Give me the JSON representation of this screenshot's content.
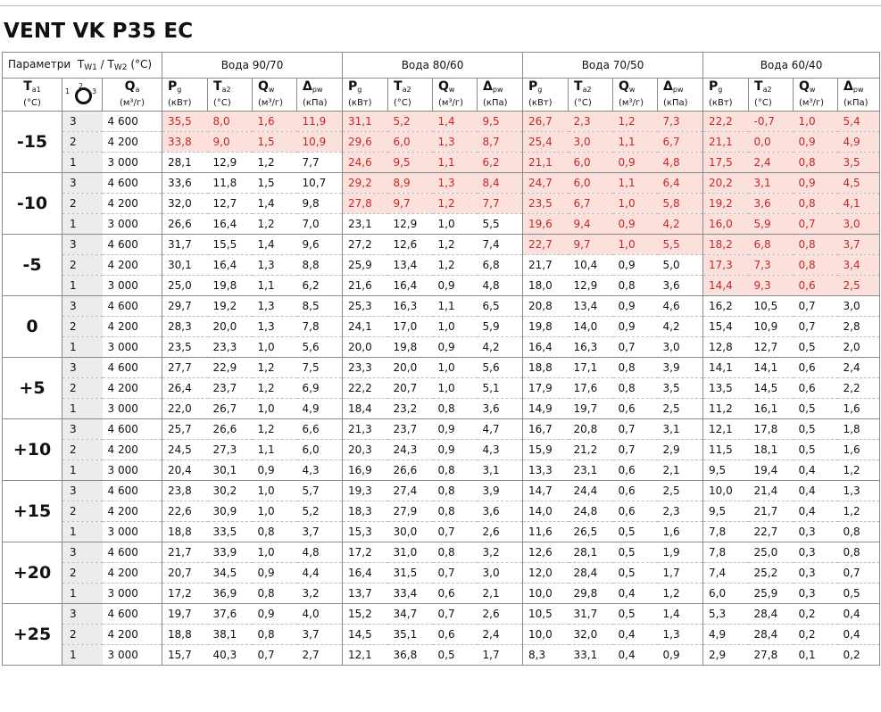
{
  "title": "VENT VK P35 EC",
  "header": {
    "params_label": "Параметри",
    "tw1": "T",
    "tw1_sub": "W1",
    "slash": "/",
    "tw2": "T",
    "tw2_sub": "W2",
    "params_unit": "(°C)",
    "groups": [
      "Вода 90/70",
      "Вода 80/60",
      "Вода 70/50",
      "Вода 60/40"
    ],
    "ta_symbol": "T",
    "ta_sub": "a1",
    "ta_unit": "(°C)",
    "fan_numbers": [
      "1",
      "2",
      "3"
    ],
    "qa_symbol": "Q",
    "qa_sub": "a",
    "qa_unit": "(м³/г)",
    "sub_headers": [
      {
        "symbol": "P",
        "sub": "g",
        "unit": "(кВт)"
      },
      {
        "symbol": "T",
        "sub": "a2",
        "unit": "(°C)"
      },
      {
        "symbol": "Q",
        "sub": "w",
        "unit": "(м³/г)"
      },
      {
        "symbol": "Δ",
        "sub": "pw",
        "unit": "(кПа)"
      }
    ]
  },
  "highlight_color": "#fbe0db",
  "highlight_text_color": "#c62828",
  "rows": [
    {
      "ta": "-15",
      "speed": "3",
      "qa": "4 600",
      "vals": [
        "35,5",
        "8,0",
        "1,6",
        "11,9",
        "31,1",
        "5,2",
        "1,4",
        "9,5",
        "26,7",
        "2,3",
        "1,2",
        "7,3",
        "22,2",
        "-0,7",
        "1,0",
        "5,4"
      ],
      "hl": [
        1,
        1,
        1,
        1,
        1,
        1,
        1,
        1,
        1,
        1,
        1,
        1,
        1,
        1,
        1,
        1
      ]
    },
    {
      "ta": "",
      "speed": "2",
      "qa": "4 200",
      "vals": [
        "33,8",
        "9,0",
        "1,5",
        "10,9",
        "29,6",
        "6,0",
        "1,3",
        "8,7",
        "25,4",
        "3,0",
        "1,1",
        "6,7",
        "21,1",
        "0,0",
        "0,9",
        "4,9"
      ],
      "hl": [
        1,
        1,
        1,
        1,
        1,
        1,
        1,
        1,
        1,
        1,
        1,
        1,
        1,
        1,
        1,
        1
      ]
    },
    {
      "ta": "",
      "speed": "1",
      "qa": "3 000",
      "vals": [
        "28,1",
        "12,9",
        "1,2",
        "7,7",
        "24,6",
        "9,5",
        "1,1",
        "6,2",
        "21,1",
        "6,0",
        "0,9",
        "4,8",
        "17,5",
        "2,4",
        "0,8",
        "3,5"
      ],
      "hl": [
        0,
        0,
        0,
        0,
        1,
        1,
        1,
        1,
        1,
        1,
        1,
        1,
        1,
        1,
        1,
        1
      ]
    },
    {
      "ta": "-10",
      "speed": "3",
      "qa": "4 600",
      "vals": [
        "33,6",
        "11,8",
        "1,5",
        "10,7",
        "29,2",
        "8,9",
        "1,3",
        "8,4",
        "24,7",
        "6,0",
        "1,1",
        "6,4",
        "20,2",
        "3,1",
        "0,9",
        "4,5"
      ],
      "hl": [
        0,
        0,
        0,
        0,
        1,
        1,
        1,
        1,
        1,
        1,
        1,
        1,
        1,
        1,
        1,
        1
      ]
    },
    {
      "ta": "",
      "speed": "2",
      "qa": "4 200",
      "vals": [
        "32,0",
        "12,7",
        "1,4",
        "9,8",
        "27,8",
        "9,7",
        "1,2",
        "7,7",
        "23,5",
        "6,7",
        "1,0",
        "5,8",
        "19,2",
        "3,6",
        "0,8",
        "4,1"
      ],
      "hl": [
        0,
        0,
        0,
        0,
        1,
        1,
        1,
        1,
        1,
        1,
        1,
        1,
        1,
        1,
        1,
        1
      ]
    },
    {
      "ta": "",
      "speed": "1",
      "qa": "3 000",
      "vals": [
        "26,6",
        "16,4",
        "1,2",
        "7,0",
        "23,1",
        "12,9",
        "1,0",
        "5,5",
        "19,6",
        "9,4",
        "0,9",
        "4,2",
        "16,0",
        "5,9",
        "0,7",
        "3,0"
      ],
      "hl": [
        0,
        0,
        0,
        0,
        0,
        0,
        0,
        0,
        1,
        1,
        1,
        1,
        1,
        1,
        1,
        1
      ]
    },
    {
      "ta": "-5",
      "speed": "3",
      "qa": "4 600",
      "vals": [
        "31,7",
        "15,5",
        "1,4",
        "9,6",
        "27,2",
        "12,6",
        "1,2",
        "7,4",
        "22,7",
        "9,7",
        "1,0",
        "5,5",
        "18,2",
        "6,8",
        "0,8",
        "3,7"
      ],
      "hl": [
        0,
        0,
        0,
        0,
        0,
        0,
        0,
        0,
        1,
        1,
        1,
        1,
        1,
        1,
        1,
        1
      ]
    },
    {
      "ta": "",
      "speed": "2",
      "qa": "4 200",
      "vals": [
        "30,1",
        "16,4",
        "1,3",
        "8,8",
        "25,9",
        "13,4",
        "1,2",
        "6,8",
        "21,7",
        "10,4",
        "0,9",
        "5,0",
        "17,3",
        "7,3",
        "0,8",
        "3,4"
      ],
      "hl": [
        0,
        0,
        0,
        0,
        0,
        0,
        0,
        0,
        0,
        0,
        0,
        0,
        1,
        1,
        1,
        1
      ]
    },
    {
      "ta": "",
      "speed": "1",
      "qa": "3 000",
      "vals": [
        "25,0",
        "19,8",
        "1,1",
        "6,2",
        "21,6",
        "16,4",
        "0,9",
        "4,8",
        "18,0",
        "12,9",
        "0,8",
        "3,6",
        "14,4",
        "9,3",
        "0,6",
        "2,5"
      ],
      "hl": [
        0,
        0,
        0,
        0,
        0,
        0,
        0,
        0,
        0,
        0,
        0,
        0,
        1,
        1,
        1,
        1
      ]
    },
    {
      "ta": "0",
      "speed": "3",
      "qa": "4 600",
      "vals": [
        "29,7",
        "19,2",
        "1,3",
        "8,5",
        "25,3",
        "16,3",
        "1,1",
        "6,5",
        "20,8",
        "13,4",
        "0,9",
        "4,6",
        "16,2",
        "10,5",
        "0,7",
        "3,0"
      ],
      "hl": [
        0,
        0,
        0,
        0,
        0,
        0,
        0,
        0,
        0,
        0,
        0,
        0,
        0,
        0,
        0,
        0
      ]
    },
    {
      "ta": "",
      "speed": "2",
      "qa": "4 200",
      "vals": [
        "28,3",
        "20,0",
        "1,3",
        "7,8",
        "24,1",
        "17,0",
        "1,0",
        "5,9",
        "19,8",
        "14,0",
        "0,9",
        "4,2",
        "15,4",
        "10,9",
        "0,7",
        "2,8"
      ],
      "hl": [
        0,
        0,
        0,
        0,
        0,
        0,
        0,
        0,
        0,
        0,
        0,
        0,
        0,
        0,
        0,
        0
      ]
    },
    {
      "ta": "",
      "speed": "1",
      "qa": "3 000",
      "vals": [
        "23,5",
        "23,3",
        "1,0",
        "5,6",
        "20,0",
        "19,8",
        "0,9",
        "4,2",
        "16,4",
        "16,3",
        "0,7",
        "3,0",
        "12,8",
        "12,7",
        "0,5",
        "2,0"
      ],
      "hl": [
        0,
        0,
        0,
        0,
        0,
        0,
        0,
        0,
        0,
        0,
        0,
        0,
        0,
        0,
        0,
        0
      ]
    },
    {
      "ta": "+5",
      "speed": "3",
      "qa": "4 600",
      "vals": [
        "27,7",
        "22,9",
        "1,2",
        "7,5",
        "23,3",
        "20,0",
        "1,0",
        "5,6",
        "18,8",
        "17,1",
        "0,8",
        "3,9",
        "14,1",
        "14,1",
        "0,6",
        "2,4"
      ],
      "hl": [
        0,
        0,
        0,
        0,
        0,
        0,
        0,
        0,
        0,
        0,
        0,
        0,
        0,
        0,
        0,
        0
      ]
    },
    {
      "ta": "",
      "speed": "2",
      "qa": "4 200",
      "vals": [
        "26,4",
        "23,7",
        "1,2",
        "6,9",
        "22,2",
        "20,7",
        "1,0",
        "5,1",
        "17,9",
        "17,6",
        "0,8",
        "3,5",
        "13,5",
        "14,5",
        "0,6",
        "2,2"
      ],
      "hl": [
        0,
        0,
        0,
        0,
        0,
        0,
        0,
        0,
        0,
        0,
        0,
        0,
        0,
        0,
        0,
        0
      ]
    },
    {
      "ta": "",
      "speed": "1",
      "qa": "3 000",
      "vals": [
        "22,0",
        "26,7",
        "1,0",
        "4,9",
        "18,4",
        "23,2",
        "0,8",
        "3,6",
        "14,9",
        "19,7",
        "0,6",
        "2,5",
        "11,2",
        "16,1",
        "0,5",
        "1,6"
      ],
      "hl": [
        0,
        0,
        0,
        0,
        0,
        0,
        0,
        0,
        0,
        0,
        0,
        0,
        0,
        0,
        0,
        0
      ]
    },
    {
      "ta": "+10",
      "speed": "3",
      "qa": "4 600",
      "vals": [
        "25,7",
        "26,6",
        "1,2",
        "6,6",
        "21,3",
        "23,7",
        "0,9",
        "4,7",
        "16,7",
        "20,8",
        "0,7",
        "3,1",
        "12,1",
        "17,8",
        "0,5",
        "1,8"
      ],
      "hl": [
        0,
        0,
        0,
        0,
        0,
        0,
        0,
        0,
        0,
        0,
        0,
        0,
        0,
        0,
        0,
        0
      ]
    },
    {
      "ta": "",
      "speed": "2",
      "qa": "4 200",
      "vals": [
        "24,5",
        "27,3",
        "1,1",
        "6,0",
        "20,3",
        "24,3",
        "0,9",
        "4,3",
        "15,9",
        "21,2",
        "0,7",
        "2,9",
        "11,5",
        "18,1",
        "0,5",
        "1,6"
      ],
      "hl": [
        0,
        0,
        0,
        0,
        0,
        0,
        0,
        0,
        0,
        0,
        0,
        0,
        0,
        0,
        0,
        0
      ]
    },
    {
      "ta": "",
      "speed": "1",
      "qa": "3 000",
      "vals": [
        "20,4",
        "30,1",
        "0,9",
        "4,3",
        "16,9",
        "26,6",
        "0,8",
        "3,1",
        "13,3",
        "23,1",
        "0,6",
        "2,1",
        "9,5",
        "19,4",
        "0,4",
        "1,2"
      ],
      "hl": [
        0,
        0,
        0,
        0,
        0,
        0,
        0,
        0,
        0,
        0,
        0,
        0,
        0,
        0,
        0,
        0
      ]
    },
    {
      "ta": "+15",
      "speed": "3",
      "qa": "4 600",
      "vals": [
        "23,8",
        "30,2",
        "1,0",
        "5,7",
        "19,3",
        "27,4",
        "0,8",
        "3,9",
        "14,7",
        "24,4",
        "0,6",
        "2,5",
        "10,0",
        "21,4",
        "0,4",
        "1,3"
      ],
      "hl": [
        0,
        0,
        0,
        0,
        0,
        0,
        0,
        0,
        0,
        0,
        0,
        0,
        0,
        0,
        0,
        0
      ]
    },
    {
      "ta": "",
      "speed": "2",
      "qa": "4 200",
      "vals": [
        "22,6",
        "30,9",
        "1,0",
        "5,2",
        "18,3",
        "27,9",
        "0,8",
        "3,6",
        "14,0",
        "24,8",
        "0,6",
        "2,3",
        "9,5",
        "21,7",
        "0,4",
        "1,2"
      ],
      "hl": [
        0,
        0,
        0,
        0,
        0,
        0,
        0,
        0,
        0,
        0,
        0,
        0,
        0,
        0,
        0,
        0
      ]
    },
    {
      "ta": "",
      "speed": "1",
      "qa": "3 000",
      "vals": [
        "18,8",
        "33,5",
        "0,8",
        "3,7",
        "15,3",
        "30,0",
        "0,7",
        "2,6",
        "11,6",
        "26,5",
        "0,5",
        "1,6",
        "7,8",
        "22,7",
        "0,3",
        "0,8"
      ],
      "hl": [
        0,
        0,
        0,
        0,
        0,
        0,
        0,
        0,
        0,
        0,
        0,
        0,
        0,
        0,
        0,
        0
      ]
    },
    {
      "ta": "+20",
      "speed": "3",
      "qa": "4 600",
      "vals": [
        "21,7",
        "33,9",
        "1,0",
        "4,8",
        "17,2",
        "31,0",
        "0,8",
        "3,2",
        "12,6",
        "28,1",
        "0,5",
        "1,9",
        "7,8",
        "25,0",
        "0,3",
        "0,8"
      ],
      "hl": [
        0,
        0,
        0,
        0,
        0,
        0,
        0,
        0,
        0,
        0,
        0,
        0,
        0,
        0,
        0,
        0
      ]
    },
    {
      "ta": "",
      "speed": "2",
      "qa": "4 200",
      "vals": [
        "20,7",
        "34,5",
        "0,9",
        "4,4",
        "16,4",
        "31,5",
        "0,7",
        "3,0",
        "12,0",
        "28,4",
        "0,5",
        "1,7",
        "7,4",
        "25,2",
        "0,3",
        "0,7"
      ],
      "hl": [
        0,
        0,
        0,
        0,
        0,
        0,
        0,
        0,
        0,
        0,
        0,
        0,
        0,
        0,
        0,
        0
      ]
    },
    {
      "ta": "",
      "speed": "1",
      "qa": "3 000",
      "vals": [
        "17,2",
        "36,9",
        "0,8",
        "3,2",
        "13,7",
        "33,4",
        "0,6",
        "2,1",
        "10,0",
        "29,8",
        "0,4",
        "1,2",
        "6,0",
        "25,9",
        "0,3",
        "0,5"
      ],
      "hl": [
        0,
        0,
        0,
        0,
        0,
        0,
        0,
        0,
        0,
        0,
        0,
        0,
        0,
        0,
        0,
        0
      ]
    },
    {
      "ta": "+25",
      "speed": "3",
      "qa": "4 600",
      "vals": [
        "19,7",
        "37,6",
        "0,9",
        "4,0",
        "15,2",
        "34,7",
        "0,7",
        "2,6",
        "10,5",
        "31,7",
        "0,5",
        "1,4",
        "5,3",
        "28,4",
        "0,2",
        "0,4"
      ],
      "hl": [
        0,
        0,
        0,
        0,
        0,
        0,
        0,
        0,
        0,
        0,
        0,
        0,
        0,
        0,
        0,
        0
      ]
    },
    {
      "ta": "",
      "speed": "2",
      "qa": "4 200",
      "vals": [
        "18,8",
        "38,1",
        "0,8",
        "3,7",
        "14,5",
        "35,1",
        "0,6",
        "2,4",
        "10,0",
        "32,0",
        "0,4",
        "1,3",
        "4,9",
        "28,4",
        "0,2",
        "0,4"
      ],
      "hl": [
        0,
        0,
        0,
        0,
        0,
        0,
        0,
        0,
        0,
        0,
        0,
        0,
        0,
        0,
        0,
        0
      ]
    },
    {
      "ta": "",
      "speed": "1",
      "qa": "3 000",
      "vals": [
        "15,7",
        "40,3",
        "0,7",
        "2,7",
        "12,1",
        "36,8",
        "0,5",
        "1,7",
        "8,3",
        "33,1",
        "0,4",
        "0,9",
        "2,9",
        "27,8",
        "0,1",
        "0,2"
      ],
      "hl": [
        0,
        0,
        0,
        0,
        0,
        0,
        0,
        0,
        0,
        0,
        0,
        0,
        0,
        0,
        0,
        0
      ]
    }
  ]
}
